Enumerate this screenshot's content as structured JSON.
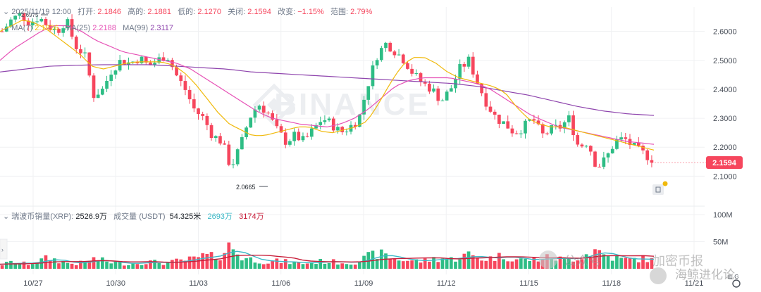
{
  "header": {
    "toggle_glyph": "⌄",
    "date": "2025/11/19 12:00",
    "open_label": "打开:",
    "open": "2.1846",
    "high_label": "高的:",
    "high": "2.1881",
    "low_label": "低的:",
    "low": "2.1270",
    "close_label": "关闭:",
    "close": "2.1594",
    "change_label": "改变:",
    "change": "−1.15%",
    "range_label": "范围:",
    "range": "2.79%",
    "ma7_label": "MA(7)",
    "ma7": "2.1926",
    "ma25_label": "MA(25)",
    "ma25": "2.2188",
    "ma99_label": "MA(99)",
    "ma99": "2.3117"
  },
  "volume_header": {
    "toggle_glyph": "⌄",
    "coin_label": "瑞波币销量(XRP):",
    "coin_value": "2526.9万",
    "turnover_label": "成交量 (USDT)",
    "turnover_value": "54.325米",
    "vma1": "2693万",
    "vma2": "3174万"
  },
  "watermark": {
    "text": "BINANCE"
  },
  "overlay_text": {
    "brand1": "公众号",
    "brand2": "加密币报",
    "brand3": "海鲸进化论",
    "mini_marks": "山 G"
  },
  "colors": {
    "up": "#2ebd85",
    "down": "#f6465d",
    "ma7": "#f0b90b",
    "ma25": "#e651b6",
    "ma99": "#8e44ad",
    "vma1": "#3bb9c7",
    "vma2": "#c81e3a",
    "grid": "#f0f1f3",
    "axis_text": "#474d57"
  },
  "chart_data": {
    "type": "candlestick",
    "title": "瑞波币 (XRP) / USDT",
    "x_labels": [
      "10/27",
      "10/30",
      "11/03",
      "11/06",
      "11/09",
      "11/12",
      "11/15",
      "11/18",
      "11/21"
    ],
    "price_axis": {
      "ticks": [
        "2.6000",
        "2.5000",
        "2.4000",
        "2.3000",
        "2.2000",
        "2.1000"
      ],
      "range": [
        2.04,
        2.66
      ]
    },
    "volume_axis": {
      "ticks": [
        "100M",
        "50M"
      ],
      "range": [
        0,
        100
      ]
    },
    "current_price": "2.1594",
    "annotations": {
      "high": "2.6975",
      "low": "2.0665"
    },
    "path": [
      2.6,
      2.64,
      2.66,
      2.63,
      2.65,
      2.62,
      2.6,
      2.64,
      2.55,
      2.52,
      2.38,
      2.4,
      2.47,
      2.5,
      2.49,
      2.51,
      2.48,
      2.5,
      2.52,
      2.45,
      2.4,
      2.33,
      2.3,
      2.24,
      2.22,
      2.13,
      2.2,
      2.3,
      2.35,
      2.32,
      2.26,
      2.22,
      2.24,
      2.22,
      2.26,
      2.3,
      2.28,
      2.25,
      2.27,
      2.3,
      2.42,
      2.52,
      2.56,
      2.53,
      2.5,
      2.45,
      2.42,
      2.4,
      2.36,
      2.4,
      2.47,
      2.5,
      2.42,
      2.35,
      2.3,
      2.28,
      2.25,
      2.27,
      2.3,
      2.24,
      2.26,
      2.27,
      2.3,
      2.2,
      2.22,
      2.13,
      2.16,
      2.22,
      2.23,
      2.2,
      2.18,
      2.16
    ],
    "volume_path": [
      8,
      12,
      10,
      9,
      14,
      20,
      16,
      11,
      9,
      12,
      18,
      15,
      12,
      10,
      9,
      11,
      13,
      12,
      10,
      14,
      16,
      18,
      24,
      22,
      26,
      45,
      22,
      18,
      16,
      12,
      14,
      13,
      11,
      10,
      12,
      14,
      13,
      12,
      11,
      14,
      22,
      28,
      24,
      18,
      16,
      15,
      14,
      18,
      20,
      17,
      22,
      26,
      20,
      18,
      22,
      24,
      18,
      16,
      17,
      19,
      21,
      18,
      17,
      22,
      28,
      35,
      24,
      20,
      17,
      18,
      19,
      16
    ],
    "ma7": [
      2.6,
      2.62,
      2.64,
      2.63,
      2.61,
      2.58,
      2.55,
      2.52,
      2.48,
      2.47,
      2.48,
      2.49,
      2.495,
      2.495,
      2.495,
      2.485,
      2.46,
      2.42,
      2.37,
      2.32,
      2.28,
      2.26,
      2.24,
      2.24,
      2.25,
      2.26,
      2.27,
      2.27,
      2.255,
      2.25,
      2.26,
      2.27,
      2.29,
      2.35,
      2.42,
      2.48,
      2.51,
      2.51,
      2.49,
      2.46,
      2.44,
      2.43,
      2.42,
      2.41,
      2.39,
      2.34,
      2.3,
      2.28,
      2.27,
      2.27,
      2.26,
      2.25,
      2.24,
      2.23,
      2.22,
      2.21,
      2.2,
      2.19
    ],
    "ma25": [
      2.5,
      2.54,
      2.57,
      2.6,
      2.62,
      2.62,
      2.6,
      2.57,
      2.55,
      2.53,
      2.52,
      2.51,
      2.5,
      2.49,
      2.47,
      2.44,
      2.41,
      2.38,
      2.35,
      2.32,
      2.3,
      2.29,
      2.28,
      2.275,
      2.27,
      2.28,
      2.3,
      2.33,
      2.37,
      2.41,
      2.43,
      2.44,
      2.44,
      2.44,
      2.43,
      2.42,
      2.4,
      2.37,
      2.34,
      2.31,
      2.29,
      2.27,
      2.26,
      2.25,
      2.24,
      2.23,
      2.22,
      2.215,
      2.21
    ],
    "ma99": [
      2.46,
      2.47,
      2.48,
      2.483,
      2.485,
      2.485,
      2.485,
      2.48,
      2.475,
      2.47,
      2.46,
      2.455,
      2.45,
      2.445,
      2.44,
      2.435,
      2.43,
      2.425,
      2.42,
      2.41,
      2.395,
      2.38,
      2.36,
      2.34,
      2.325,
      2.315,
      2.31
    ]
  }
}
